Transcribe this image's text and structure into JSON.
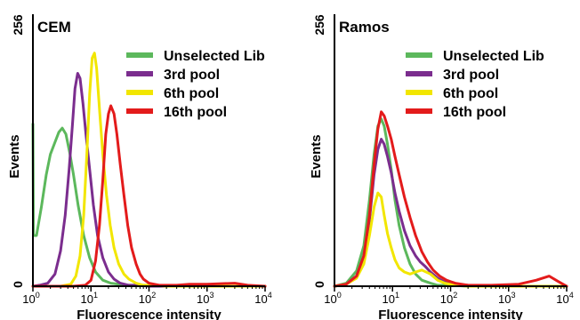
{
  "chart_data": [
    {
      "type": "line",
      "title": "CEM",
      "xlabel": "Fluorescence intensity",
      "ylabel": "Events",
      "xscale": "log",
      "xlim": [
        1,
        10000
      ],
      "ylim": [
        0,
        256
      ],
      "xtick_labels": [
        {
          "base": "10",
          "exp": "0"
        },
        {
          "base": "10",
          "exp": "1"
        },
        {
          "base": "10",
          "exp": "2"
        },
        {
          "base": "10",
          "exp": "3"
        },
        {
          "base": "10",
          "exp": "4"
        }
      ],
      "ytick_labels": [
        "0",
        "256"
      ],
      "legend_position": "top-right",
      "series": [
        {
          "name": "Unselected Lib",
          "color": "#5cb85c",
          "x": [
            1,
            1.02,
            1.15,
            1.4,
            1.7,
            2.0,
            2.4,
            2.8,
            3.2,
            3.7,
            4.3,
            5.0,
            6.0,
            7.5,
            9.5,
            12,
            16,
            22,
            30,
            45,
            70,
            100,
            200,
            500,
            1000,
            3000,
            10000
          ],
          "y": [
            160,
            50,
            50,
            78,
            110,
            130,
            142,
            152,
            156,
            150,
            132,
            110,
            80,
            50,
            28,
            14,
            6,
            3,
            2,
            1,
            1,
            1,
            0,
            0,
            0,
            0,
            0
          ]
        },
        {
          "name": "3rd pool",
          "color": "#7b2d8e",
          "x": [
            1,
            1.3,
            1.8,
            2.4,
            3.0,
            3.6,
            4.2,
            4.8,
            5.3,
            5.9,
            6.5,
            7.3,
            8.2,
            9.5,
            11,
            13,
            16,
            20,
            25,
            32,
            45,
            65,
            100,
            300,
            1000,
            10000
          ],
          "y": [
            0,
            1,
            3,
            12,
            35,
            70,
            115,
            160,
            195,
            210,
            205,
            180,
            150,
            115,
            80,
            50,
            28,
            14,
            7,
            3,
            1,
            1,
            0,
            0,
            0,
            0
          ]
        },
        {
          "name": "6th pool",
          "color": "#f2e600",
          "x": [
            1,
            3,
            4.5,
            5.5,
            6.5,
            7.5,
            8.5,
            9.5,
            10.5,
            11.5,
            12.5,
            14,
            16,
            18.5,
            21.5,
            25,
            30,
            37,
            45,
            60,
            80,
            120,
            200,
            500,
            10000
          ],
          "y": [
            0,
            0,
            2,
            10,
            30,
            70,
            130,
            190,
            225,
            230,
            215,
            175,
            130,
            90,
            60,
            38,
            22,
            12,
            7,
            3,
            1,
            1,
            0,
            0,
            0
          ]
        },
        {
          "name": "16th pool",
          "color": "#e31b1b",
          "x": [
            1,
            5,
            8,
            10,
            12,
            14,
            16,
            18,
            20,
            22,
            25,
            28,
            32,
            37,
            43,
            50,
            60,
            70,
            80,
            100,
            150,
            300,
            500,
            1000,
            3000,
            5000,
            10000
          ],
          "y": [
            0,
            0,
            1,
            6,
            25,
            60,
            105,
            150,
            170,
            178,
            170,
            150,
            120,
            90,
            60,
            38,
            22,
            12,
            7,
            3,
            1,
            1,
            2,
            2,
            3,
            1,
            0
          ]
        }
      ]
    },
    {
      "type": "line",
      "title": "Ramos",
      "xlabel": "Fluorescence intensity",
      "ylabel": "Events",
      "xscale": "log",
      "xlim": [
        1,
        10000
      ],
      "ylim": [
        0,
        256
      ],
      "xtick_labels": [
        {
          "base": "10",
          "exp": "0"
        },
        {
          "base": "10",
          "exp": "1"
        },
        {
          "base": "10",
          "exp": "2"
        },
        {
          "base": "10",
          "exp": "3"
        },
        {
          "base": "10",
          "exp": "4"
        }
      ],
      "ytick_labels": [
        "0",
        "256"
      ],
      "legend_position": "top-right",
      "series": [
        {
          "name": "Unselected Lib",
          "color": "#5cb85c",
          "x": [
            1,
            1.6,
            2.4,
            3.2,
            4.0,
            4.8,
            5.6,
            6.4,
            7.2,
            8.2,
            9.5,
            11,
            13,
            16,
            20,
            25,
            32,
            45,
            60,
            100,
            200,
            500,
            2000,
            10000
          ],
          "y": [
            0,
            3,
            15,
            40,
            85,
            130,
            158,
            165,
            158,
            140,
            115,
            85,
            60,
            38,
            22,
            12,
            6,
            3,
            1,
            1,
            0,
            0,
            0,
            0
          ]
        },
        {
          "name": "3rd pool",
          "color": "#7b2d8e",
          "x": [
            1,
            1.6,
            2.4,
            3.2,
            4.0,
            4.8,
            5.6,
            6.4,
            7.2,
            8.2,
            9.5,
            11,
            13,
            16,
            20,
            25,
            30,
            36,
            45,
            60,
            80,
            120,
            200,
            500,
            2000,
            10000
          ],
          "y": [
            0,
            2,
            10,
            30,
            65,
            110,
            135,
            145,
            140,
            128,
            112,
            92,
            74,
            55,
            40,
            30,
            24,
            20,
            14,
            8,
            4,
            2,
            1,
            0,
            0,
            0
          ]
        },
        {
          "name": "6th pool",
          "color": "#f2e600",
          "x": [
            1,
            1.6,
            2.4,
            3.2,
            4.0,
            4.8,
            5.6,
            6.4,
            7.2,
            8.2,
            9.5,
            11,
            13,
            16,
            20,
            25,
            32,
            45,
            60,
            80,
            120,
            200,
            500,
            10000
          ],
          "y": [
            0,
            2,
            8,
            22,
            50,
            78,
            92,
            88,
            70,
            52,
            38,
            26,
            18,
            14,
            12,
            14,
            16,
            12,
            6,
            3,
            1,
            0,
            0,
            0
          ]
        },
        {
          "name": "16th pool",
          "color": "#e31b1b",
          "x": [
            1,
            1.6,
            2.4,
            3.2,
            4.0,
            4.8,
            5.6,
            6.4,
            7.2,
            8.2,
            9.5,
            11,
            13,
            16,
            20,
            25,
            32,
            40,
            50,
            65,
            85,
            120,
            200,
            500,
            1500,
            3000,
            5000,
            7000,
            10000
          ],
          "y": [
            0,
            2,
            10,
            30,
            70,
            120,
            155,
            172,
            168,
            158,
            145,
            128,
            110,
            88,
            68,
            50,
            34,
            24,
            16,
            10,
            6,
            3,
            1,
            1,
            2,
            6,
            10,
            5,
            0
          ]
        }
      ]
    }
  ]
}
